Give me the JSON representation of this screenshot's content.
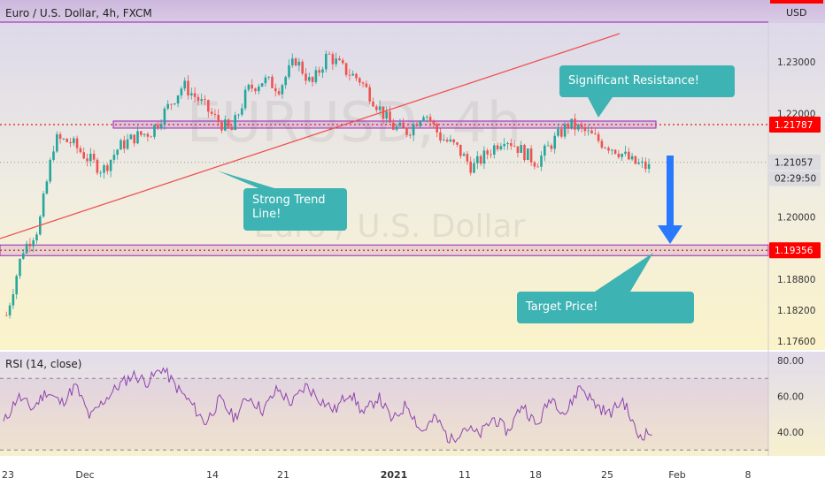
{
  "header": {
    "symbol_title": "Euro / U.S. Dollar, 4h, FXCM",
    "currency": "USD",
    "watermark_symbol": "EURUSD, 4h",
    "watermark_name": "Euro / U.S. Dollar"
  },
  "colors": {
    "up_candle": "#26a69a",
    "down_candle": "#ef5350",
    "trend_line": "#ef5350",
    "resistance_zone": "#9c27b0",
    "callout": "#3db3b3",
    "arrow": "#2979ff",
    "rsi_line": "#8e44ad"
  },
  "chart_data": [
    {
      "type": "line",
      "title": "Euro / U.S. Dollar, 4h, FXCM",
      "series_kind": "candlestick",
      "x_ticks": [
        "23",
        "Dec",
        "14",
        "21",
        "2021",
        "11",
        "18",
        "25",
        "Feb",
        "8"
      ],
      "y_ticks": [
        1.176,
        1.182,
        1.188,
        1.2,
        1.22,
        1.23
      ],
      "ylim": [
        1.174,
        1.236
      ],
      "price_tags": {
        "resistance": "1.21787",
        "current": "1.21057",
        "countdown": "02:29:50",
        "support": "1.19356"
      },
      "anchor_closes": [
        1.181,
        1.1935,
        1.198,
        1.215,
        1.2145,
        1.2115,
        1.209,
        1.2135,
        1.2155,
        1.2165,
        1.221,
        1.2255,
        1.2225,
        1.219,
        1.2165,
        1.2245,
        1.2265,
        1.225,
        1.2305,
        1.2255,
        1.2315,
        1.2285,
        1.2265,
        1.222,
        1.2175,
        1.2165,
        1.2205,
        1.2155,
        1.2135,
        1.2095,
        1.2125,
        1.2155,
        1.213,
        1.2105,
        1.2145,
        1.218,
        1.2165,
        1.2145,
        1.213,
        1.2105,
        1.2095
      ],
      "annotations": [
        "Significant Resistance!",
        "Strong Trend Line!",
        "Target Price!"
      ]
    },
    {
      "type": "line",
      "title": "RSI (14, close)",
      "y_ticks": [
        40,
        60,
        80
      ],
      "ylim": [
        30,
        85
      ],
      "bands": [
        30,
        70
      ],
      "anchor_values": [
        45,
        60,
        53,
        63,
        56,
        66,
        48,
        58,
        66,
        72,
        68,
        76,
        65,
        56,
        45,
        58,
        48,
        60,
        52,
        64,
        56,
        66,
        58,
        52,
        63,
        50,
        60,
        46,
        56,
        40,
        48,
        35,
        43,
        38,
        48,
        40,
        56,
        43,
        60,
        50,
        66,
        56,
        50,
        58,
        38,
        40
      ]
    }
  ]
}
